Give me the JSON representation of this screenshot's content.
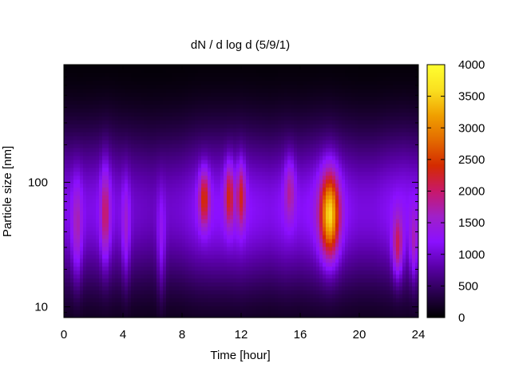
{
  "chart_data": {
    "type": "heatmap",
    "title": "dN / d log d (5/9/1)",
    "xlabel": "Time [hour]",
    "ylabel": "Particle size [nm]",
    "xlim": [
      0,
      24
    ],
    "ylim": [
      8.2,
      880
    ],
    "yscale": "log",
    "x_ticks": [
      "0",
      "4",
      "8",
      "12",
      "16",
      "20",
      "24"
    ],
    "y_ticks": [
      "10",
      "100"
    ],
    "colorbar": {
      "range": [
        0,
        4000
      ],
      "ticks": [
        "0",
        "500",
        "1000",
        "1500",
        "2000",
        "2500",
        "3000",
        "3500",
        "4000"
      ],
      "palette": [
        "#000000",
        "#2a0050",
        "#5a00a8",
        "#8b10ff",
        "#a020c8",
        "#c8186a",
        "#d42a00",
        "#e36a00",
        "#f0a000",
        "#fae020",
        "#ffff30"
      ]
    },
    "background_size_nm": 60,
    "background_sigma_log10": 0.45,
    "background_base": [
      [
        0,
        1100
      ],
      [
        1,
        1050
      ],
      [
        2,
        1100
      ],
      [
        3,
        1150
      ],
      [
        4,
        1000
      ],
      [
        5,
        950
      ],
      [
        6,
        900
      ],
      [
        7,
        950
      ],
      [
        8,
        1000
      ],
      [
        9,
        1150
      ],
      [
        10,
        1200
      ],
      [
        11,
        1200
      ],
      [
        12,
        1250
      ],
      [
        13,
        1150
      ],
      [
        14,
        1100
      ],
      [
        15,
        1200
      ],
      [
        16,
        1150
      ],
      [
        17,
        1250
      ],
      [
        18,
        1300
      ],
      [
        19,
        1150
      ],
      [
        20,
        1050
      ],
      [
        21,
        1050
      ],
      [
        22,
        1150
      ],
      [
        23,
        1200
      ],
      [
        24,
        1150
      ]
    ],
    "events": [
      {
        "t": 0.9,
        "d": 40,
        "peak": 700,
        "width_h": 0.25,
        "sigma_log10": 0.3
      },
      {
        "t": 2.8,
        "d": 55,
        "peak": 900,
        "width_h": 0.22,
        "sigma_log10": 0.28
      },
      {
        "t": 4.2,
        "d": 40,
        "peak": 600,
        "width_h": 0.2,
        "sigma_log10": 0.3
      },
      {
        "t": 6.6,
        "d": 30,
        "peak": 500,
        "width_h": 0.2,
        "sigma_log10": 0.3
      },
      {
        "t": 9.5,
        "d": 75,
        "peak": 1300,
        "width_h": 0.25,
        "sigma_log10": 0.16
      },
      {
        "t": 11.2,
        "d": 80,
        "peak": 1200,
        "width_h": 0.22,
        "sigma_log10": 0.18
      },
      {
        "t": 12.0,
        "d": 80,
        "peak": 1100,
        "width_h": 0.2,
        "sigma_log10": 0.18
      },
      {
        "t": 15.3,
        "d": 90,
        "peak": 700,
        "width_h": 0.25,
        "sigma_log10": 0.18
      },
      {
        "t": 18.0,
        "d": 55,
        "peak": 2300,
        "width_h": 0.45,
        "sigma_log10": 0.24
      },
      {
        "t": 22.6,
        "d": 30,
        "peak": 1100,
        "width_h": 0.25,
        "sigma_log10": 0.18
      },
      {
        "t": 23.7,
        "d": 30,
        "peak": 700,
        "width_h": 0.2,
        "sigma_log10": 0.2
      }
    ]
  }
}
